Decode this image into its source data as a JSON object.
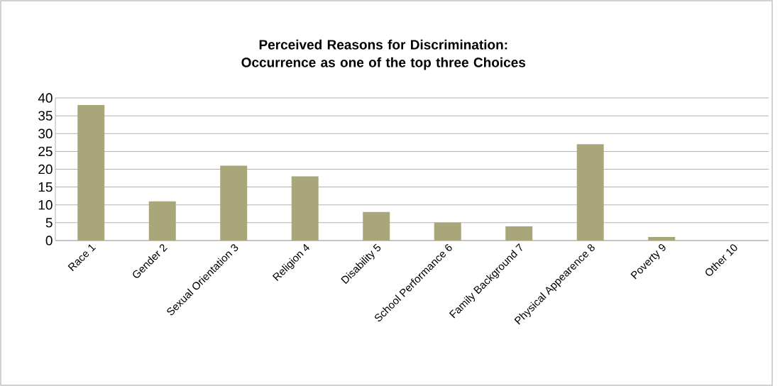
{
  "chart_data": {
    "type": "bar",
    "title": "Perceived Reasons for Discrimination: Occurrence as one of the top three Choices",
    "categories": [
      "Race 1",
      "Gender 2",
      "Sexual Orientation 3",
      "Religion  4",
      "Disability 5",
      "School Performance 6",
      "Family Background 7",
      "Physical Appearence 8",
      "Poverty 9",
      "Other 10"
    ],
    "values": [
      38,
      11,
      21,
      18,
      8,
      5,
      4,
      27,
      1,
      0
    ],
    "color": "#a9a77a",
    "ylim": [
      0,
      40
    ],
    "yticks": [
      0,
      5,
      10,
      15,
      20,
      25,
      30,
      35,
      40
    ],
    "grid": "y"
  }
}
